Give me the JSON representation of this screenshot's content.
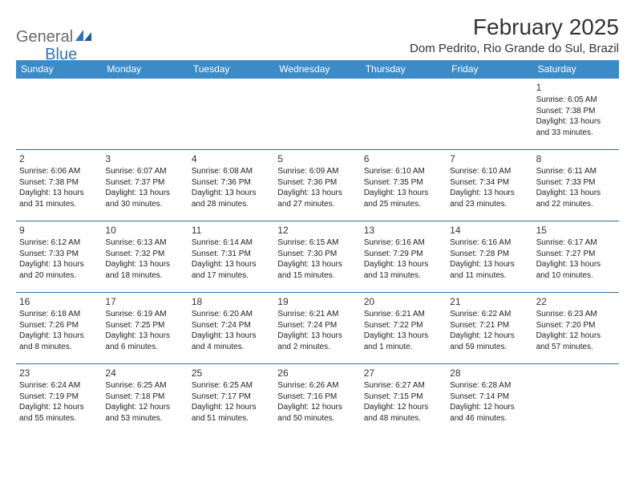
{
  "logo": {
    "part1": "General",
    "part2": "Blue"
  },
  "title": "February 2025",
  "location": "Dom Pedrito, Rio Grande do Sul, Brazil",
  "colors": {
    "header_bg": "#3b8bc8",
    "header_text": "#ffffff",
    "divider": "#3b6a94",
    "logo_gray": "#6a6a6a",
    "logo_blue": "#2e75b6",
    "body_text": "#222222"
  },
  "weekdays": [
    "Sunday",
    "Monday",
    "Tuesday",
    "Wednesday",
    "Thursday",
    "Friday",
    "Saturday"
  ],
  "weeks": [
    [
      {
        "n": "",
        "sunrise": "",
        "sunset": "",
        "daylight": ""
      },
      {
        "n": "",
        "sunrise": "",
        "sunset": "",
        "daylight": ""
      },
      {
        "n": "",
        "sunrise": "",
        "sunset": "",
        "daylight": ""
      },
      {
        "n": "",
        "sunrise": "",
        "sunset": "",
        "daylight": ""
      },
      {
        "n": "",
        "sunrise": "",
        "sunset": "",
        "daylight": ""
      },
      {
        "n": "",
        "sunrise": "",
        "sunset": "",
        "daylight": ""
      },
      {
        "n": "1",
        "sunrise": "Sunrise: 6:05 AM",
        "sunset": "Sunset: 7:38 PM",
        "daylight": "Daylight: 13 hours and 33 minutes."
      }
    ],
    [
      {
        "n": "2",
        "sunrise": "Sunrise: 6:06 AM",
        "sunset": "Sunset: 7:38 PM",
        "daylight": "Daylight: 13 hours and 31 minutes."
      },
      {
        "n": "3",
        "sunrise": "Sunrise: 6:07 AM",
        "sunset": "Sunset: 7:37 PM",
        "daylight": "Daylight: 13 hours and 30 minutes."
      },
      {
        "n": "4",
        "sunrise": "Sunrise: 6:08 AM",
        "sunset": "Sunset: 7:36 PM",
        "daylight": "Daylight: 13 hours and 28 minutes."
      },
      {
        "n": "5",
        "sunrise": "Sunrise: 6:09 AM",
        "sunset": "Sunset: 7:36 PM",
        "daylight": "Daylight: 13 hours and 27 minutes."
      },
      {
        "n": "6",
        "sunrise": "Sunrise: 6:10 AM",
        "sunset": "Sunset: 7:35 PM",
        "daylight": "Daylight: 13 hours and 25 minutes."
      },
      {
        "n": "7",
        "sunrise": "Sunrise: 6:10 AM",
        "sunset": "Sunset: 7:34 PM",
        "daylight": "Daylight: 13 hours and 23 minutes."
      },
      {
        "n": "8",
        "sunrise": "Sunrise: 6:11 AM",
        "sunset": "Sunset: 7:33 PM",
        "daylight": "Daylight: 13 hours and 22 minutes."
      }
    ],
    [
      {
        "n": "9",
        "sunrise": "Sunrise: 6:12 AM",
        "sunset": "Sunset: 7:33 PM",
        "daylight": "Daylight: 13 hours and 20 minutes."
      },
      {
        "n": "10",
        "sunrise": "Sunrise: 6:13 AM",
        "sunset": "Sunset: 7:32 PM",
        "daylight": "Daylight: 13 hours and 18 minutes."
      },
      {
        "n": "11",
        "sunrise": "Sunrise: 6:14 AM",
        "sunset": "Sunset: 7:31 PM",
        "daylight": "Daylight: 13 hours and 17 minutes."
      },
      {
        "n": "12",
        "sunrise": "Sunrise: 6:15 AM",
        "sunset": "Sunset: 7:30 PM",
        "daylight": "Daylight: 13 hours and 15 minutes."
      },
      {
        "n": "13",
        "sunrise": "Sunrise: 6:16 AM",
        "sunset": "Sunset: 7:29 PM",
        "daylight": "Daylight: 13 hours and 13 minutes."
      },
      {
        "n": "14",
        "sunrise": "Sunrise: 6:16 AM",
        "sunset": "Sunset: 7:28 PM",
        "daylight": "Daylight: 13 hours and 11 minutes."
      },
      {
        "n": "15",
        "sunrise": "Sunrise: 6:17 AM",
        "sunset": "Sunset: 7:27 PM",
        "daylight": "Daylight: 13 hours and 10 minutes."
      }
    ],
    [
      {
        "n": "16",
        "sunrise": "Sunrise: 6:18 AM",
        "sunset": "Sunset: 7:26 PM",
        "daylight": "Daylight: 13 hours and 8 minutes."
      },
      {
        "n": "17",
        "sunrise": "Sunrise: 6:19 AM",
        "sunset": "Sunset: 7:25 PM",
        "daylight": "Daylight: 13 hours and 6 minutes."
      },
      {
        "n": "18",
        "sunrise": "Sunrise: 6:20 AM",
        "sunset": "Sunset: 7:24 PM",
        "daylight": "Daylight: 13 hours and 4 minutes."
      },
      {
        "n": "19",
        "sunrise": "Sunrise: 6:21 AM",
        "sunset": "Sunset: 7:24 PM",
        "daylight": "Daylight: 13 hours and 2 minutes."
      },
      {
        "n": "20",
        "sunrise": "Sunrise: 6:21 AM",
        "sunset": "Sunset: 7:22 PM",
        "daylight": "Daylight: 13 hours and 1 minute."
      },
      {
        "n": "21",
        "sunrise": "Sunrise: 6:22 AM",
        "sunset": "Sunset: 7:21 PM",
        "daylight": "Daylight: 12 hours and 59 minutes."
      },
      {
        "n": "22",
        "sunrise": "Sunrise: 6:23 AM",
        "sunset": "Sunset: 7:20 PM",
        "daylight": "Daylight: 12 hours and 57 minutes."
      }
    ],
    [
      {
        "n": "23",
        "sunrise": "Sunrise: 6:24 AM",
        "sunset": "Sunset: 7:19 PM",
        "daylight": "Daylight: 12 hours and 55 minutes."
      },
      {
        "n": "24",
        "sunrise": "Sunrise: 6:25 AM",
        "sunset": "Sunset: 7:18 PM",
        "daylight": "Daylight: 12 hours and 53 minutes."
      },
      {
        "n": "25",
        "sunrise": "Sunrise: 6:25 AM",
        "sunset": "Sunset: 7:17 PM",
        "daylight": "Daylight: 12 hours and 51 minutes."
      },
      {
        "n": "26",
        "sunrise": "Sunrise: 6:26 AM",
        "sunset": "Sunset: 7:16 PM",
        "daylight": "Daylight: 12 hours and 50 minutes."
      },
      {
        "n": "27",
        "sunrise": "Sunrise: 6:27 AM",
        "sunset": "Sunset: 7:15 PM",
        "daylight": "Daylight: 12 hours and 48 minutes."
      },
      {
        "n": "28",
        "sunrise": "Sunrise: 6:28 AM",
        "sunset": "Sunset: 7:14 PM",
        "daylight": "Daylight: 12 hours and 46 minutes."
      },
      {
        "n": "",
        "sunrise": "",
        "sunset": "",
        "daylight": ""
      }
    ]
  ]
}
